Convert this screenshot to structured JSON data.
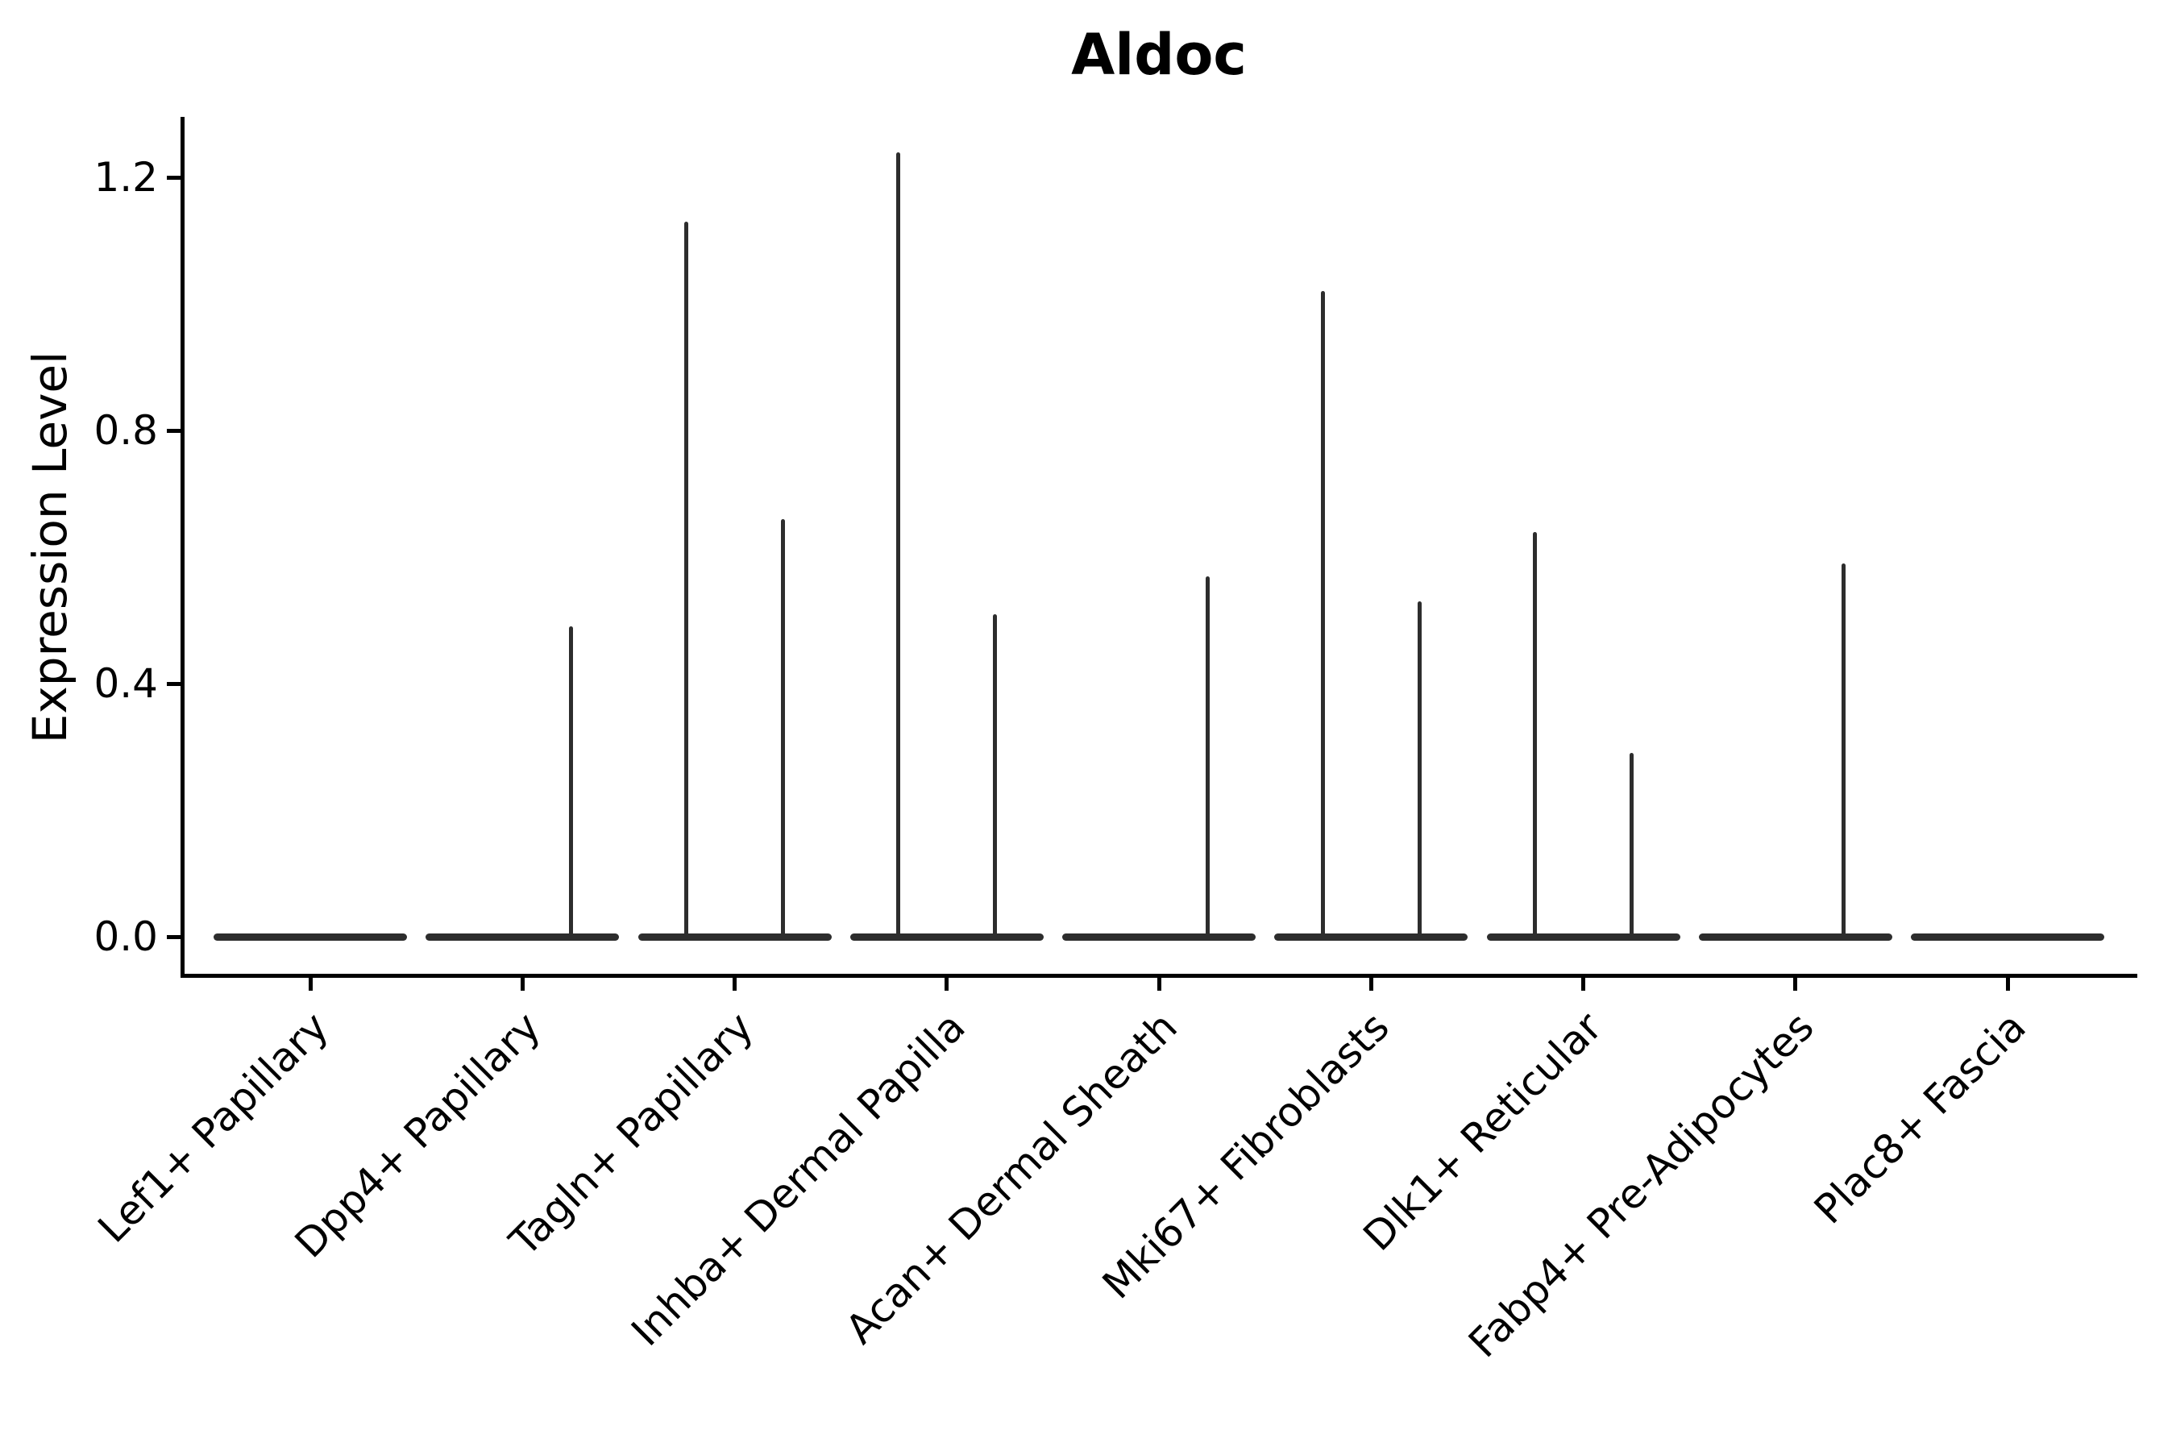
{
  "title": "Aldoc",
  "y_axis": {
    "label": "Expression Level"
  },
  "chart_data": {
    "type": "violin",
    "title": "Aldoc",
    "xlabel": "",
    "ylabel": "Expression Level",
    "ylim": [
      0,
      1.28
    ],
    "grid": false,
    "legend_position": "none",
    "y_ticks": [
      {
        "label": "0.0",
        "value": 0.0
      },
      {
        "label": "0.4",
        "value": 0.4
      },
      {
        "label": "0.8",
        "value": 0.8
      },
      {
        "label": "1.2",
        "value": 1.2
      }
    ],
    "categories": [
      "Lef1+ Papillary",
      "Dpp4+ Papillary",
      "Tagln+ Papillary",
      "Inhba+ Dermal Papilla",
      "Acan+ Dermal Sheath",
      "Mki67+ Fibroblasts",
      "Dlk1+ Reticular",
      "Fabp4+ Pre-Adipocytes",
      "Plac8+ Fascia"
    ],
    "violins": [
      {
        "category": "Lef1+ Papillary",
        "baseline_value": 0.0,
        "spikes": []
      },
      {
        "category": "Dpp4+ Papillary",
        "baseline_value": 0.0,
        "spikes": [
          {
            "side": "right",
            "max": 0.49
          }
        ]
      },
      {
        "category": "Tagln+ Papillary",
        "baseline_value": 0.0,
        "spikes": [
          {
            "side": "left",
            "max": 1.13
          },
          {
            "side": "right",
            "max": 0.66
          }
        ]
      },
      {
        "category": "Inhba+ Dermal Papilla",
        "baseline_value": 0.0,
        "spikes": [
          {
            "side": "left",
            "max": 1.24
          },
          {
            "side": "right",
            "max": 0.51
          }
        ]
      },
      {
        "category": "Acan+ Dermal Sheath",
        "baseline_value": 0.0,
        "spikes": [
          {
            "side": "right",
            "max": 0.57
          }
        ]
      },
      {
        "category": "Mki67+ Fibroblasts",
        "baseline_value": 0.0,
        "spikes": [
          {
            "side": "left",
            "max": 1.02
          },
          {
            "side": "right",
            "max": 0.53
          }
        ]
      },
      {
        "category": "Dlk1+ Reticular",
        "baseline_value": 0.0,
        "spikes": [
          {
            "side": "left",
            "max": 0.64
          },
          {
            "side": "right",
            "max": 0.29
          }
        ]
      },
      {
        "category": "Fabp4+ Pre-Adipocytes",
        "baseline_value": 0.0,
        "spikes": [
          {
            "side": "right",
            "max": 0.59
          }
        ]
      },
      {
        "category": "Plac8+ Fascia",
        "baseline_value": 0.0,
        "spikes": []
      }
    ],
    "colors": {
      "violin": "#2d2d2d",
      "axis": "#000000",
      "text": "#000000",
      "background": "#ffffff"
    }
  }
}
